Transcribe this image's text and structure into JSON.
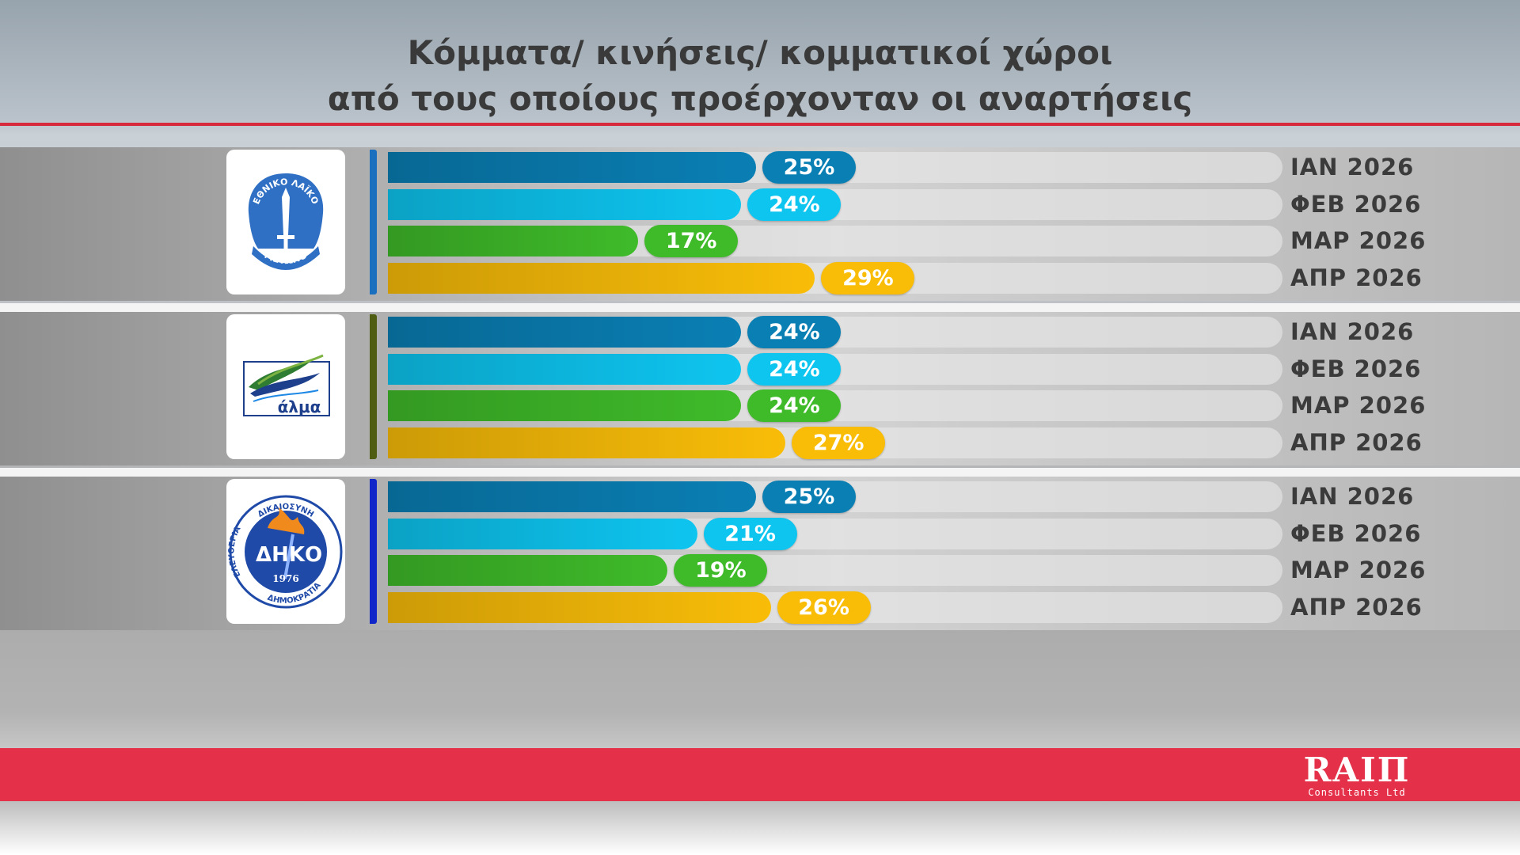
{
  "title": {
    "line1": "Κόμματα/ κινήσεις/ κομματικοί χώροι",
    "line2": "από τους οποίους προέρχονταν οι αναρτήσεις"
  },
  "colors": {
    "title_rule": "#d8283b",
    "bottom_band": "#e43149",
    "period_colors": [
      "#0a7fb4",
      "#0ec5f0",
      "#3fbb2a",
      "#f9bd08"
    ],
    "group_accents": [
      "#1b6fbf",
      "#4e5d12",
      "#1026c8"
    ]
  },
  "logos": [
    {
      "name": "ethniko-laiko-metopo-logo",
      "arc_top": "ΕΘΝΙΚΟ ΛΑΪΚΟ",
      "arc_bottom": "ΜΕΤΩΠΟ"
    },
    {
      "name": "alma-logo",
      "word": "άλμα"
    },
    {
      "name": "diko-logo",
      "initials": "ΔΗ",
      "initials2": "ΚΟ",
      "year": "1976",
      "ring_top": "ΔΙΚΑΙΟΣΥΝΗ",
      "ring_left": "ΕΛΕΥΘΕΡΙΑ",
      "ring_bottom": "ΔΗΜΟΚΡΑΤΙΑ"
    }
  ],
  "chart_data": {
    "type": "bar",
    "orientation": "horizontal",
    "value_unit": "%",
    "categories": [
      "ΙΑΝ 2026",
      "ΦΕΒ 2026",
      "ΜΑΡ 2026",
      "ΑΠΡ 2026"
    ],
    "groups": [
      {
        "values": [
          25,
          24,
          17,
          29
        ],
        "labels": [
          "25%",
          "24%",
          "17%",
          "29%"
        ]
      },
      {
        "values": [
          24,
          24,
          24,
          27
        ],
        "labels": [
          "24%",
          "24%",
          "24%",
          "27%"
        ]
      },
      {
        "values": [
          25,
          21,
          19,
          26
        ],
        "labels": [
          "25%",
          "21%",
          "19%",
          "26%"
        ]
      }
    ],
    "legend": "none",
    "grid": false
  },
  "brand": {
    "name": "RAIΠ",
    "sub": "Consultants Ltd"
  }
}
